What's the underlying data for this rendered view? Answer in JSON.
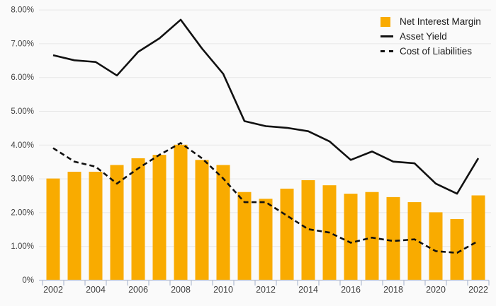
{
  "chart_data": {
    "type": "combo",
    "categories": [
      "2002",
      "2003",
      "2004",
      "2005",
      "2006",
      "2007",
      "2008",
      "2009",
      "2010",
      "2011",
      "2012",
      "2013",
      "2014",
      "2015",
      "2016",
      "2017",
      "2018",
      "2019",
      "2020",
      "2021",
      "2022"
    ],
    "series": [
      {
        "name": "Net Interest Margin",
        "type": "bar",
        "color": "#F9AB00",
        "values": [
          3.0,
          3.2,
          3.2,
          3.4,
          3.6,
          3.7,
          4.0,
          3.55,
          3.4,
          2.6,
          2.4,
          2.7,
          2.95,
          2.8,
          2.55,
          2.6,
          2.45,
          2.3,
          2.0,
          1.8,
          2.5
        ]
      },
      {
        "name": "Asset Yield",
        "type": "line",
        "style": "solid",
        "color": "#111111",
        "values": [
          6.65,
          6.5,
          6.45,
          6.05,
          6.75,
          7.15,
          7.7,
          6.85,
          6.1,
          4.7,
          4.55,
          4.5,
          4.4,
          4.1,
          3.55,
          3.8,
          3.5,
          3.45,
          2.85,
          2.55,
          3.6
        ]
      },
      {
        "name": "Cost of Liabilities",
        "type": "line",
        "style": "dashed",
        "color": "#111111",
        "values": [
          3.9,
          3.5,
          3.35,
          2.85,
          3.3,
          3.7,
          4.05,
          3.6,
          3.0,
          2.3,
          2.3,
          1.9,
          1.5,
          1.4,
          1.1,
          1.25,
          1.15,
          1.2,
          0.85,
          0.8,
          1.15
        ]
      }
    ],
    "ylim": [
      0,
      8
    ],
    "ytick_step": 1,
    "ytick_labels": [
      "0%",
      "1.00%",
      "2.00%",
      "3.00%",
      "4.00%",
      "5.00%",
      "6.00%",
      "7.00%",
      "8.00%"
    ],
    "xtick_labels": [
      "2002",
      "2004",
      "2006",
      "2008",
      "2010",
      "2012",
      "2014",
      "2016",
      "2018",
      "2020",
      "2022"
    ],
    "xtick_step": 2,
    "grid": "horizontal",
    "legend_position": "top-right"
  },
  "colors": {
    "background": "#fafafa",
    "grid": "#e7e7e7",
    "axis": "#b7c1d6",
    "tick_text": "#3f3f3f",
    "bar": "#F9AB00",
    "line": "#111111"
  }
}
